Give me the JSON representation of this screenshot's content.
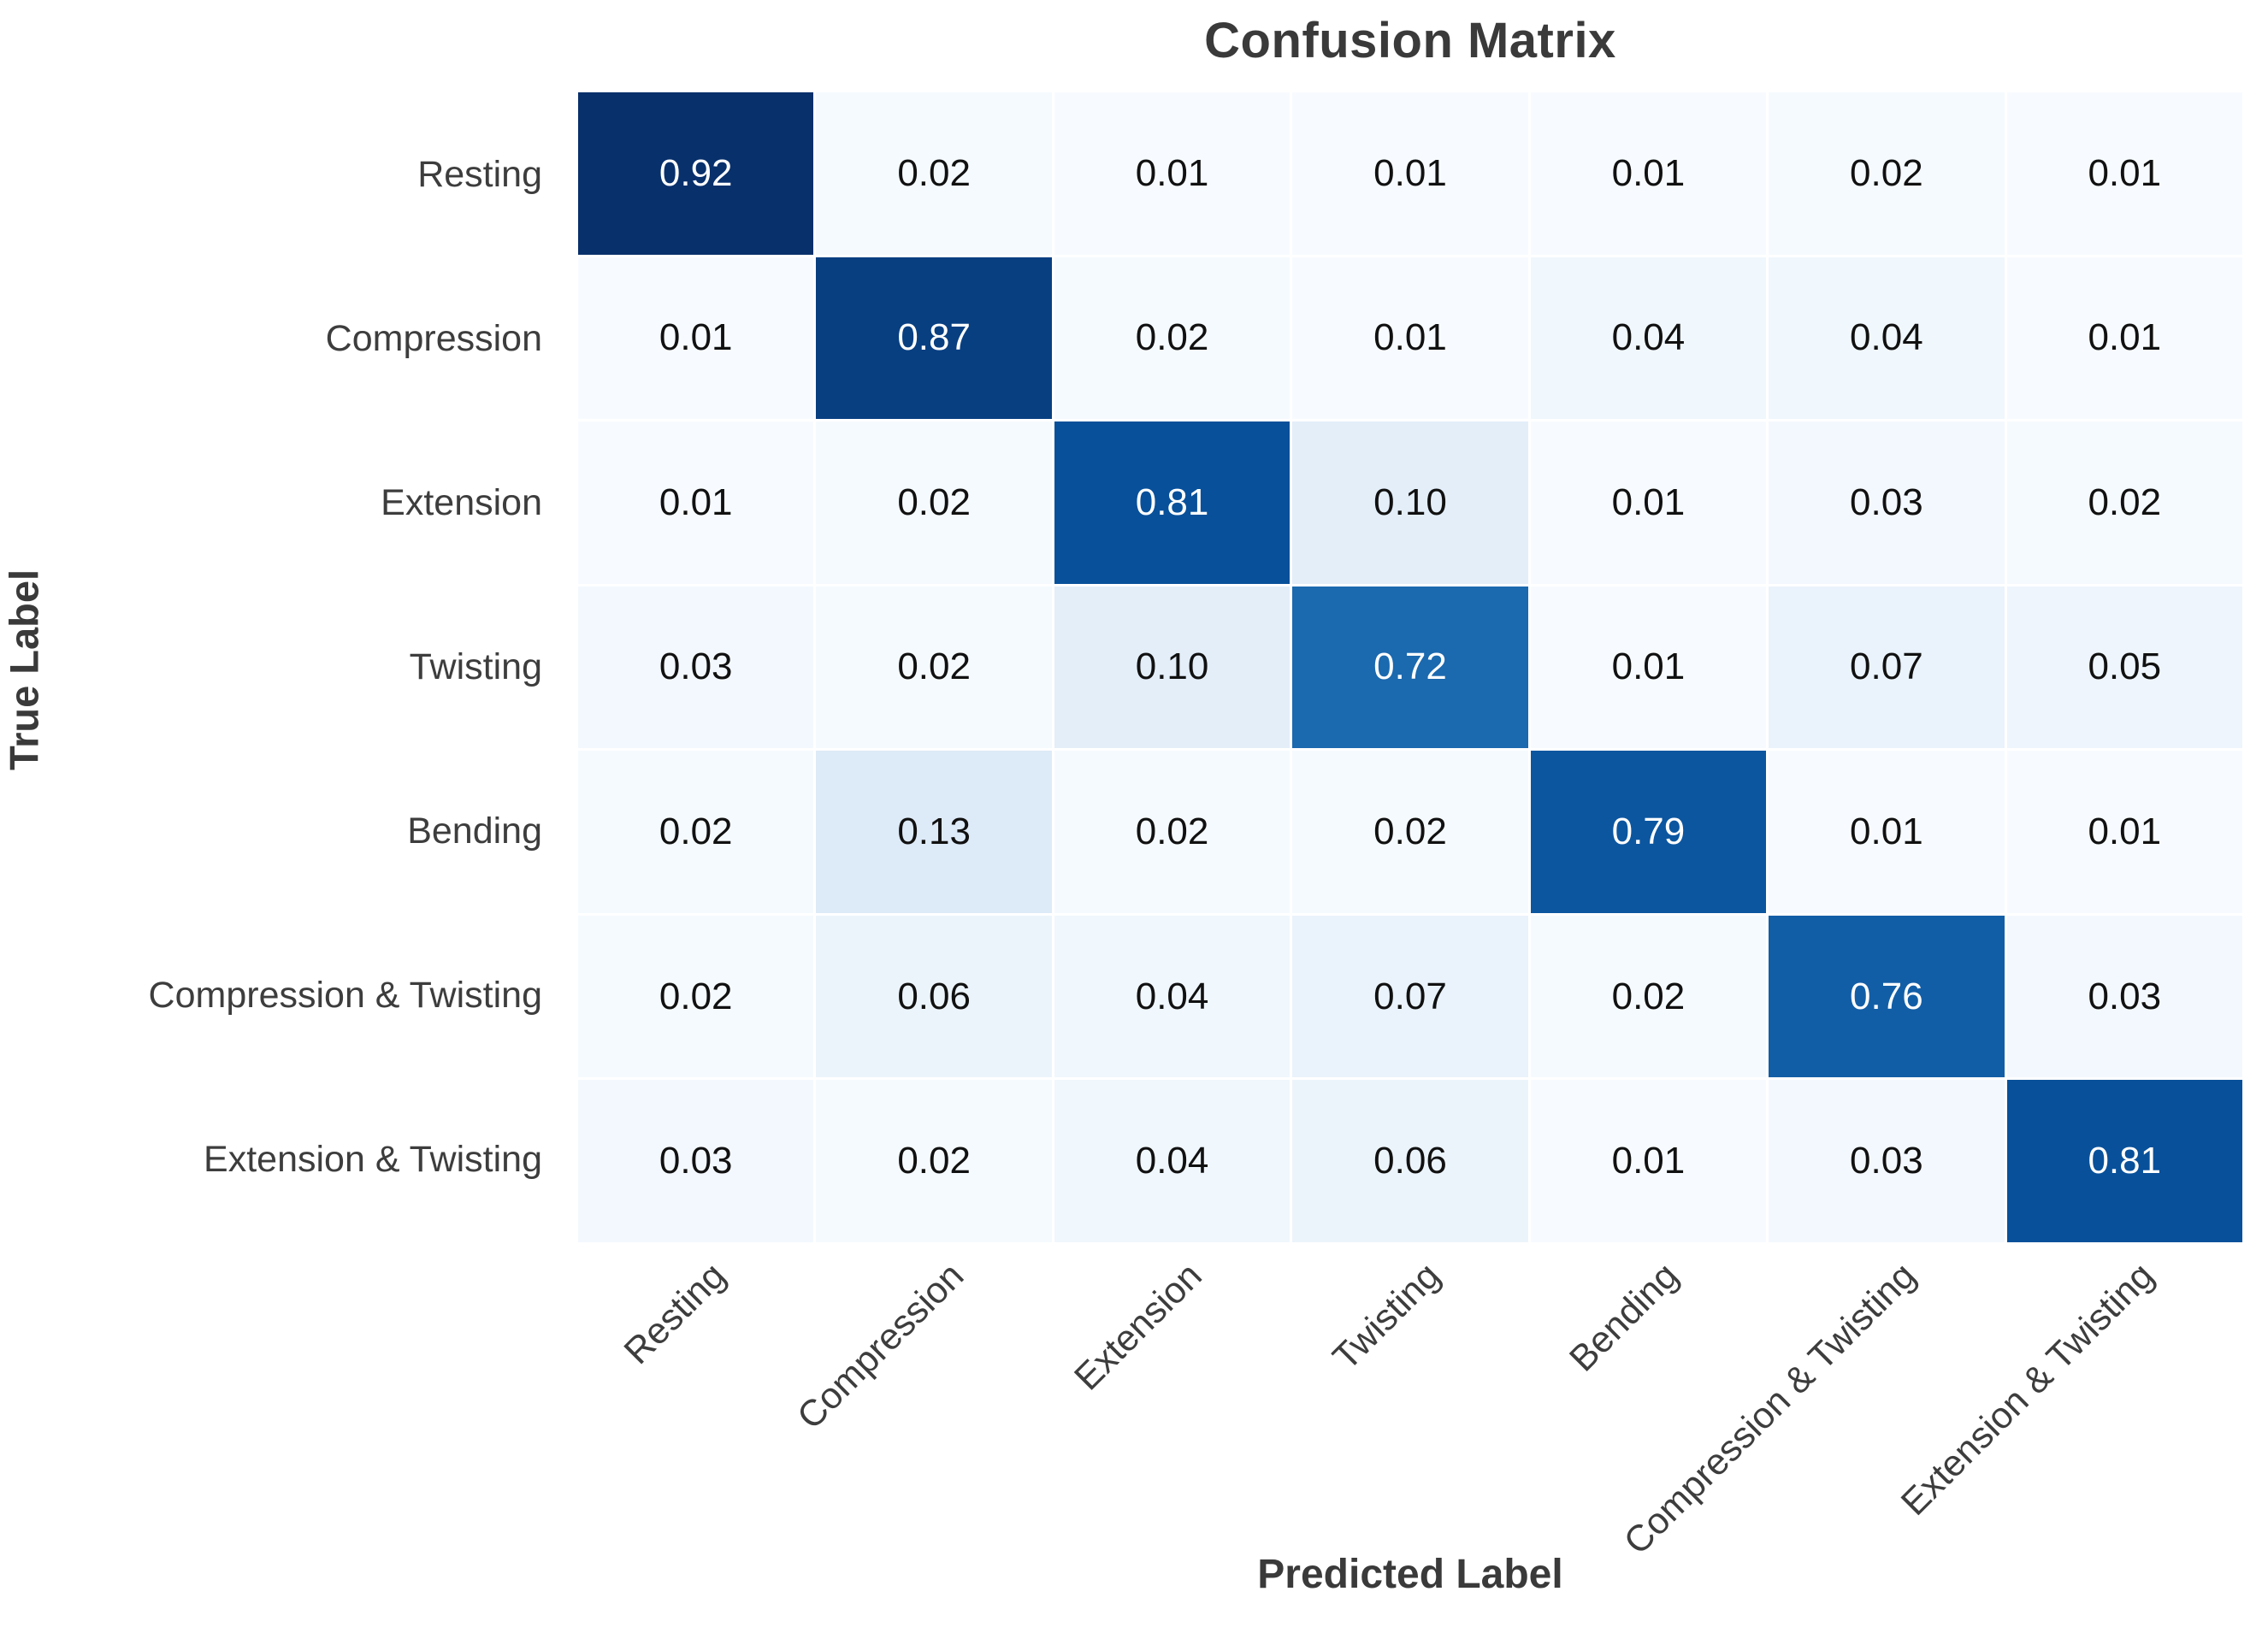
{
  "chart_data": {
    "type": "heatmap",
    "title": "Confusion Matrix",
    "xlabel": "Predicted Label",
    "ylabel": "True Label",
    "categories": [
      "Resting",
      "Compression",
      "Extension",
      "Twisting",
      "Bending",
      "Compression & Twisting",
      "Extension & Twisting"
    ],
    "x_tick_labels": [
      "Resting",
      "Compression",
      "Extension",
      "Twisting",
      "Bending",
      "Compression & Twisting",
      "Extension & Twisting"
    ],
    "y_tick_labels": [
      "Resting",
      "Compression",
      "Extension",
      "Twisting",
      "Bending",
      "Compression & Twisting",
      "Extension & Twisting"
    ],
    "matrix": [
      [
        0.92,
        0.02,
        0.01,
        0.01,
        0.01,
        0.02,
        0.01
      ],
      [
        0.01,
        0.87,
        0.02,
        0.01,
        0.04,
        0.04,
        0.01
      ],
      [
        0.01,
        0.02,
        0.81,
        0.1,
        0.01,
        0.03,
        0.02
      ],
      [
        0.03,
        0.02,
        0.1,
        0.72,
        0.01,
        0.07,
        0.05
      ],
      [
        0.02,
        0.13,
        0.02,
        0.02,
        0.79,
        0.01,
        0.01
      ],
      [
        0.02,
        0.06,
        0.04,
        0.07,
        0.02,
        0.76,
        0.03
      ],
      [
        0.03,
        0.02,
        0.04,
        0.06,
        0.01,
        0.03,
        0.81
      ]
    ],
    "value_format": "2-decimals",
    "colormap": {
      "name": "Blues",
      "anchors": [
        {
          "t": 0.0,
          "hex": "#f7fbff"
        },
        {
          "t": 0.125,
          "hex": "#deebf7"
        },
        {
          "t": 0.25,
          "hex": "#c6dbef"
        },
        {
          "t": 0.375,
          "hex": "#9ecae1"
        },
        {
          "t": 0.5,
          "hex": "#6baed6"
        },
        {
          "t": 0.625,
          "hex": "#4292c6"
        },
        {
          "t": 0.75,
          "hex": "#2171b5"
        },
        {
          "t": 0.875,
          "hex": "#08519c"
        },
        {
          "t": 1.0,
          "hex": "#08306b"
        }
      ]
    },
    "layout_hints": {
      "grid": "white 3px cell separators",
      "x_tick_rotation_deg": 45,
      "legend": "none",
      "background": "#ffffff",
      "title_color": "#3a3a3a",
      "tick_label_color": "#3d3d3d",
      "cell_text_dark": "#111111",
      "cell_text_light": "#ffffff"
    }
  }
}
